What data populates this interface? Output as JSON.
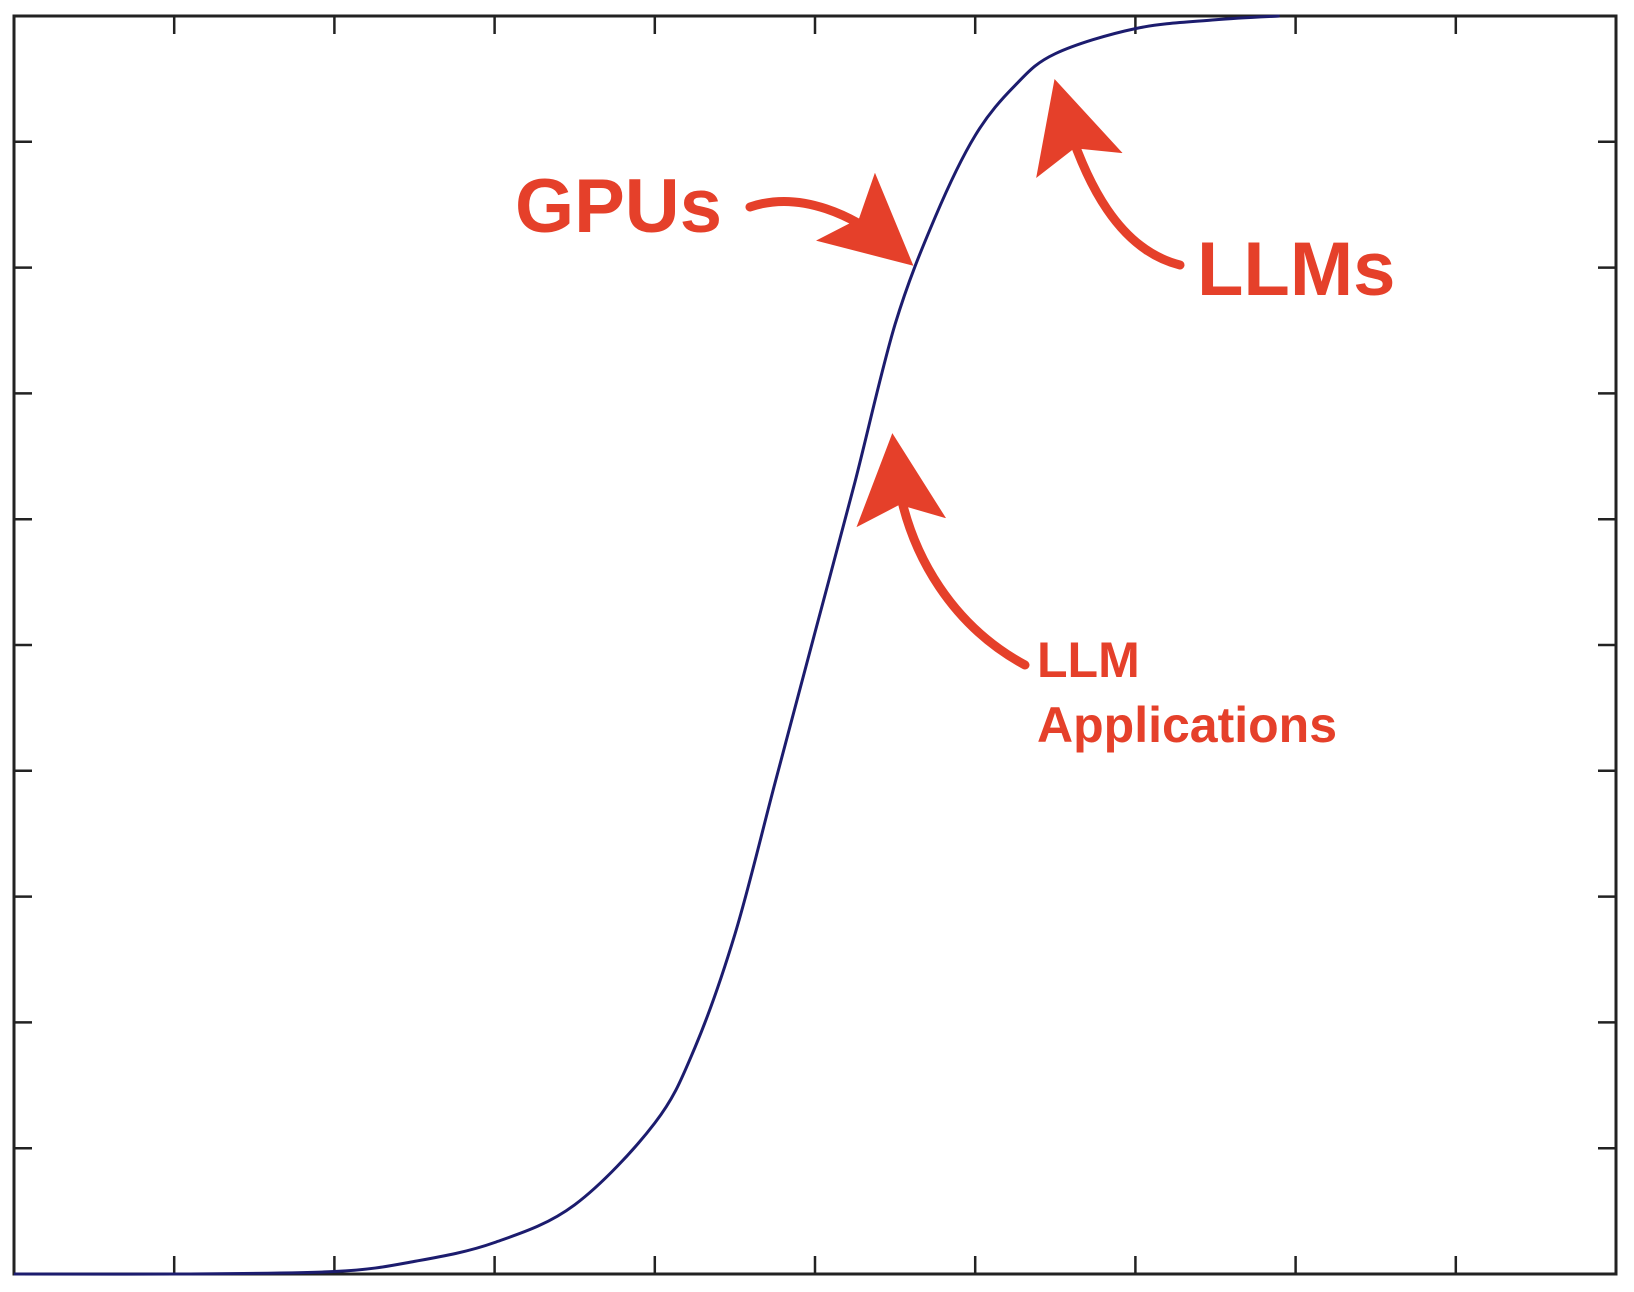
{
  "chart_data": {
    "type": "line",
    "title": "",
    "xlabel": "",
    "ylabel": "",
    "xlim": [
      0,
      10
    ],
    "ylim": [
      0,
      10
    ],
    "x_ticks": [
      0,
      1,
      2,
      3,
      4,
      5,
      6,
      7,
      8,
      9,
      10
    ],
    "y_ticks": [
      0,
      1,
      2,
      3,
      4,
      5,
      6,
      7,
      8,
      9,
      10
    ],
    "tick_labels_shown": false,
    "grid": false,
    "series": [
      {
        "color": "#1c1c6e",
        "x": [
          0,
          1,
          2,
          2.5,
          3,
          3.5,
          4,
          4.25,
          4.5,
          4.75,
          5,
          5.25,
          5.5,
          5.75,
          6,
          6.25,
          6.5,
          7,
          7.5,
          7.9
        ],
        "y": [
          0,
          0,
          0.02,
          0.1,
          0.25,
          0.55,
          1.2,
          1.8,
          2.7,
          3.9,
          5.1,
          6.3,
          7.55,
          8.4,
          9.05,
          9.45,
          9.7,
          9.9,
          9.97,
          10
        ]
      }
    ],
    "annotations": [
      {
        "id": "gpus",
        "text": "GPUs",
        "color": "#e5402a",
        "points_to": [
          5.6,
          8.1
        ]
      },
      {
        "id": "llms",
        "text": "LLMs",
        "color": "#e5402a",
        "points_to": [
          6.5,
          9.5
        ]
      },
      {
        "id": "llm_apps",
        "lines": [
          "LLM",
          "Applications"
        ],
        "color": "#e5402a",
        "points_to": [
          5.4,
          6.7
        ]
      }
    ]
  }
}
